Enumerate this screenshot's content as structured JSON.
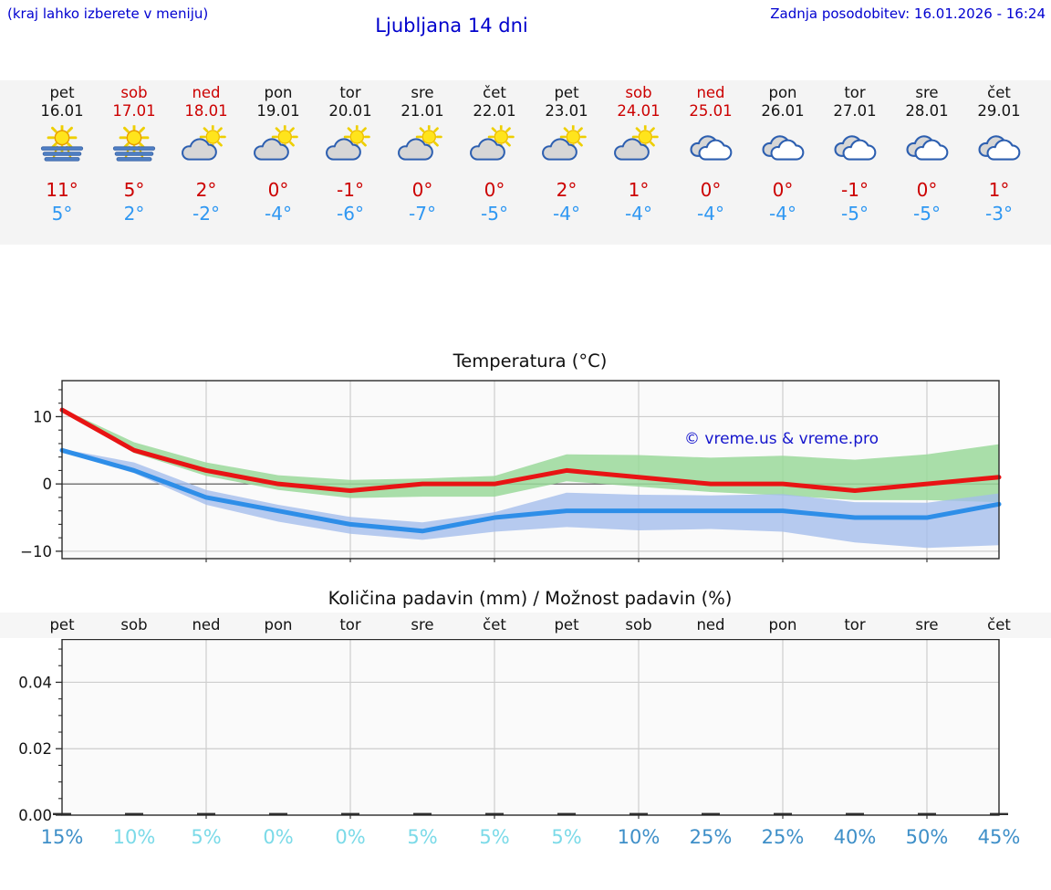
{
  "page": {
    "note": "(kraj lahko izberete v meniju)",
    "title": "Ljubljana 14 dni",
    "last_update": "Zadnja posodobitev: 16.01.2026 - 16:24"
  },
  "colors": {
    "header_blue": "#0000cc",
    "weekend_red": "#cc0000",
    "high_red": "#cc0000",
    "low_blue": "#2e97f2",
    "prob_dark": "#3e8fc8",
    "prob_light": "#7bdae8",
    "temp_max_line": "#e81414",
    "temp_min_line": "#2e8ee8",
    "temp_max_band": "#9ad89a",
    "temp_min_band": "#a3bdec",
    "watermark_blue": "#1414cc"
  },
  "forecast": {
    "days": [
      {
        "name": "pet",
        "date": "16.01",
        "weekend": false,
        "icon": "sun-fog",
        "high": "11°",
        "low": "5°"
      },
      {
        "name": "sob",
        "date": "17.01",
        "weekend": true,
        "icon": "sun-fog",
        "high": "5°",
        "low": "2°"
      },
      {
        "name": "ned",
        "date": "18.01",
        "weekend": true,
        "icon": "sun-cloud",
        "high": "2°",
        "low": "-2°"
      },
      {
        "name": "pon",
        "date": "19.01",
        "weekend": false,
        "icon": "sun-cloud",
        "high": "0°",
        "low": "-4°"
      },
      {
        "name": "tor",
        "date": "20.01",
        "weekend": false,
        "icon": "sun-cloud",
        "high": "-1°",
        "low": "-6°"
      },
      {
        "name": "sre",
        "date": "21.01",
        "weekend": false,
        "icon": "sun-cloud",
        "high": "0°",
        "low": "-7°"
      },
      {
        "name": "čet",
        "date": "22.01",
        "weekend": false,
        "icon": "sun-cloud",
        "high": "0°",
        "low": "-5°"
      },
      {
        "name": "pet",
        "date": "23.01",
        "weekend": false,
        "icon": "sun-cloud",
        "high": "2°",
        "low": "-4°"
      },
      {
        "name": "sob",
        "date": "24.01",
        "weekend": true,
        "icon": "sun-cloud",
        "high": "1°",
        "low": "-4°"
      },
      {
        "name": "ned",
        "date": "25.01",
        "weekend": true,
        "icon": "cloudy",
        "high": "0°",
        "low": "-4°"
      },
      {
        "name": "pon",
        "date": "26.01",
        "weekend": false,
        "icon": "cloudy",
        "high": "0°",
        "low": "-4°"
      },
      {
        "name": "tor",
        "date": "27.01",
        "weekend": false,
        "icon": "cloudy",
        "high": "-1°",
        "low": "-5°"
      },
      {
        "name": "sre",
        "date": "28.01",
        "weekend": false,
        "icon": "cloudy",
        "high": "0°",
        "low": "-5°"
      },
      {
        "name": "čet",
        "date": "29.01",
        "weekend": false,
        "icon": "cloudy",
        "high": "1°",
        "low": "-3°"
      }
    ]
  },
  "chart_data": [
    {
      "type": "line",
      "title": "Temperatura (°C)",
      "watermark": "© vreme.us & vreme.pro",
      "x_days": [
        "pet",
        "sob",
        "ned",
        "pon",
        "tor",
        "sre",
        "čet",
        "pet",
        "sob",
        "ned",
        "pon",
        "tor",
        "sre",
        "čet"
      ],
      "series": [
        {
          "name": "max",
          "values": [
            11,
            5,
            2,
            0,
            -1,
            0,
            0,
            2,
            1,
            0,
            0,
            -1,
            0,
            1
          ]
        },
        {
          "name": "min",
          "values": [
            5,
            2,
            -2,
            -4,
            -6,
            -7,
            -5,
            -4,
            -4,
            -4,
            -4,
            -5,
            -5,
            -3
          ]
        }
      ],
      "bands": {
        "max_upper": [
          11.2,
          6.2,
          3.2,
          1.3,
          0.6,
          0.8,
          1.2,
          4.4,
          4.3,
          3.9,
          4.2,
          3.6,
          4.4,
          5.9
        ],
        "max_lower": [
          10.8,
          4.6,
          1.2,
          -0.9,
          -2.1,
          -1.9,
          -1.9,
          0.4,
          -0.4,
          -1.2,
          -1.7,
          -2.4,
          -2.4,
          -2.7
        ],
        "min_upper": [
          5.2,
          3.2,
          -0.9,
          -3.1,
          -4.9,
          -5.7,
          -4.2,
          -1.3,
          -1.6,
          -1.7,
          -1.5,
          -2.7,
          -2.8,
          -1.4
        ],
        "min_lower": [
          4.8,
          1.6,
          -3.1,
          -5.6,
          -7.4,
          -8.3,
          -7.1,
          -6.4,
          -6.9,
          -6.7,
          -7.1,
          -8.7,
          -9.5,
          -9.1
        ]
      },
      "yticks": [
        10,
        0,
        -10
      ],
      "ylim": [
        -11.1,
        15.35
      ],
      "grid": {
        "vertical_every_days": 2,
        "horizontal_at": [
          10,
          0,
          -10
        ],
        "zero_line": true
      }
    },
    {
      "type": "bar",
      "title": "Količina padavin (mm) / Možnost padavin (%)",
      "top_labels": [
        "pet",
        "sob",
        "ned",
        "pon",
        "tor",
        "sre",
        "čet",
        "pet",
        "sob",
        "ned",
        "pon",
        "tor",
        "sre",
        "čet"
      ],
      "values_mm": [
        0,
        0,
        0,
        0,
        0,
        0,
        0,
        0,
        0,
        0,
        0,
        0,
        0,
        0
      ],
      "probabilities_pct": [
        15,
        10,
        5,
        0,
        0,
        5,
        5,
        5,
        10,
        25,
        25,
        40,
        50,
        45
      ],
      "prob_styles": [
        "dark",
        "light",
        "light",
        "light",
        "light",
        "light",
        "light",
        "light",
        "dark",
        "dark",
        "dark",
        "dark",
        "dark",
        "dark"
      ],
      "yticks": [
        {
          "label": "0.04",
          "value": 0.04
        },
        {
          "label": "0.02",
          "value": 0.02
        },
        {
          "label": "0.00",
          "value": 0
        }
      ],
      "ylim": [
        0,
        0.0529
      ],
      "grid": {
        "vertical_every_days": 2,
        "horizontal_at": [
          0.02,
          0.04
        ]
      }
    }
  ]
}
